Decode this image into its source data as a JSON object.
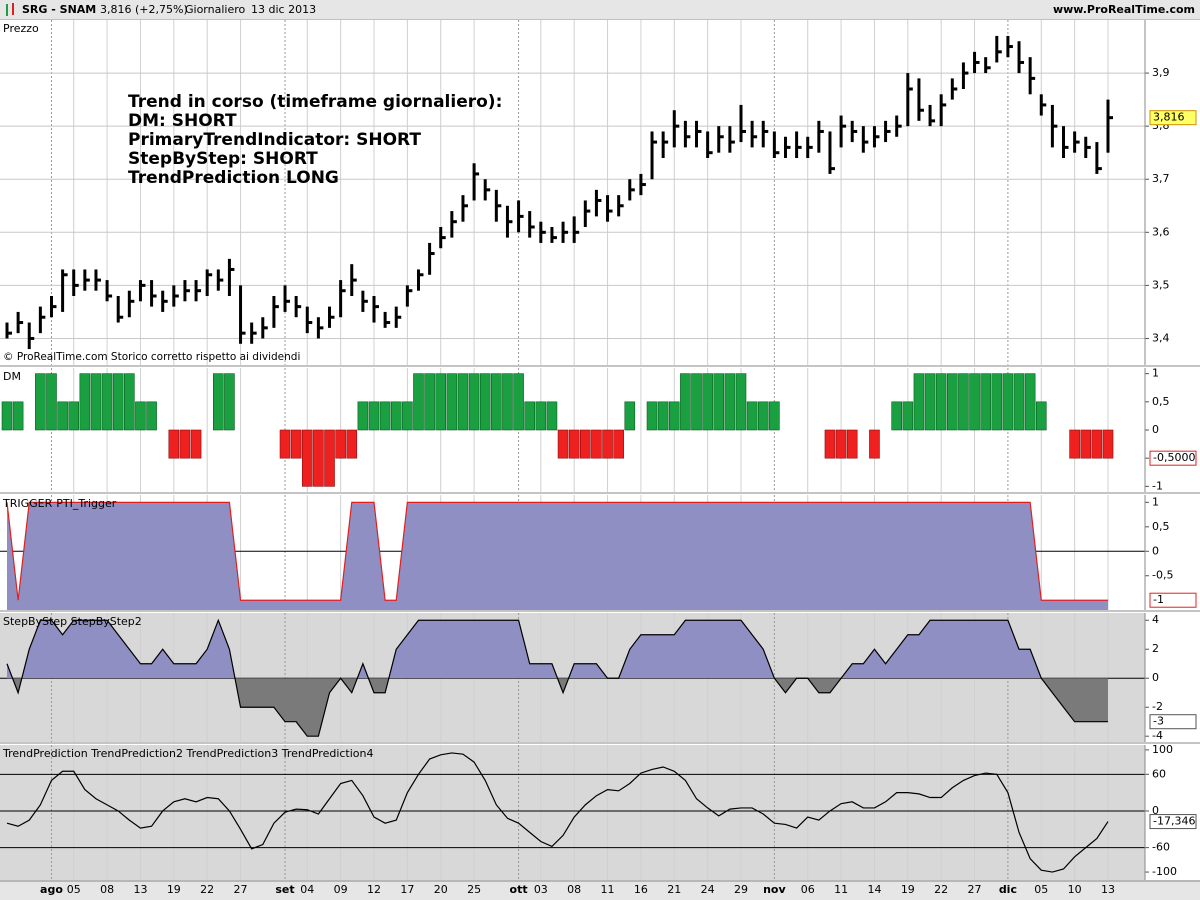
{
  "header": {
    "symbol": "SRG - SNAM",
    "quote": "3,816 (+2,75%)",
    "period": "Giornaliero",
    "date": "13 dic 2013",
    "site": "www.ProRealTime.com"
  },
  "x_categories": [
    null,
    null,
    null,
    null,
    "ago",
    null,
    "05",
    null,
    null,
    "08",
    null,
    null,
    "13",
    null,
    null,
    "19",
    null,
    null,
    "22",
    null,
    null,
    "27",
    null,
    null,
    null,
    "set",
    null,
    "04",
    null,
    null,
    "09",
    null,
    null,
    "12",
    null,
    null,
    "17",
    null,
    null,
    "20",
    null,
    null,
    "25",
    null,
    null,
    null,
    "ott",
    null,
    "03",
    null,
    null,
    "08",
    null,
    null,
    "11",
    null,
    null,
    "16",
    null,
    null,
    "21",
    null,
    null,
    "24",
    null,
    null,
    "29",
    null,
    null,
    "nov",
    null,
    null,
    "06",
    null,
    null,
    "11",
    null,
    null,
    "14",
    null,
    null,
    "19",
    null,
    null,
    "22",
    null,
    null,
    "27",
    null,
    null,
    "dic",
    null,
    null,
    "05",
    null,
    null,
    "10",
    null,
    null,
    "13"
  ],
  "chart_data": [
    {
      "type": "ohlc",
      "title": "Prezzo",
      "title_color": "#000000",
      "background": "#ffffff",
      "annotations": [
        "Trend in corso (timeframe giornaliero):",
        "DM: SHORT",
        "PrimaryTrendIndicator: SHORT",
        "StepByStep: SHORT",
        "TrendPrediction LONG"
      ],
      "footnote": "© ProRealTime.com Storico corretto rispetto ai dividendi",
      "color": "#000000",
      "high": [
        3.43,
        3.45,
        3.43,
        3.46,
        3.48,
        3.53,
        3.53,
        3.53,
        3.53,
        3.51,
        3.48,
        3.49,
        3.51,
        3.51,
        3.49,
        3.5,
        3.51,
        3.51,
        3.53,
        3.53,
        3.55,
        3.5,
        3.43,
        3.44,
        3.48,
        3.5,
        3.48,
        3.46,
        3.44,
        3.46,
        3.51,
        3.54,
        3.49,
        3.48,
        3.45,
        3.46,
        3.5,
        3.53,
        3.58,
        3.61,
        3.64,
        3.67,
        3.73,
        3.7,
        3.68,
        3.65,
        3.66,
        3.64,
        3.62,
        3.61,
        3.62,
        3.63,
        3.66,
        3.68,
        3.67,
        3.67,
        3.7,
        3.71,
        3.79,
        3.79,
        3.83,
        3.81,
        3.81,
        3.79,
        3.8,
        3.8,
        3.84,
        3.81,
        3.81,
        3.79,
        3.78,
        3.79,
        3.78,
        3.81,
        3.79,
        3.82,
        3.81,
        3.8,
        3.8,
        3.81,
        3.82,
        3.9,
        3.89,
        3.84,
        3.86,
        3.89,
        3.92,
        3.94,
        3.93,
        3.97,
        3.97,
        3.96,
        3.93,
        3.86,
        3.84,
        3.8,
        3.79,
        3.78,
        3.77,
        3.85
      ],
      "low": [
        3.4,
        3.41,
        3.38,
        3.41,
        3.44,
        3.45,
        3.48,
        3.49,
        3.49,
        3.47,
        3.43,
        3.44,
        3.47,
        3.46,
        3.45,
        3.46,
        3.47,
        3.47,
        3.48,
        3.49,
        3.48,
        3.39,
        3.39,
        3.4,
        3.42,
        3.45,
        3.44,
        3.41,
        3.4,
        3.42,
        3.44,
        3.48,
        3.45,
        3.43,
        3.42,
        3.42,
        3.46,
        3.49,
        3.52,
        3.57,
        3.59,
        3.62,
        3.66,
        3.66,
        3.62,
        3.59,
        3.6,
        3.59,
        3.58,
        3.58,
        3.58,
        3.58,
        3.61,
        3.63,
        3.62,
        3.63,
        3.66,
        3.67,
        3.7,
        3.74,
        3.76,
        3.76,
        3.76,
        3.74,
        3.75,
        3.75,
        3.77,
        3.76,
        3.76,
        3.74,
        3.74,
        3.74,
        3.74,
        3.75,
        3.71,
        3.76,
        3.77,
        3.75,
        3.76,
        3.77,
        3.78,
        3.8,
        3.81,
        3.8,
        3.8,
        3.85,
        3.87,
        3.9,
        3.9,
        3.92,
        3.93,
        3.9,
        3.86,
        3.82,
        3.76,
        3.74,
        3.75,
        3.74,
        3.71,
        3.75
      ],
      "close": [
        3.41,
        3.43,
        3.4,
        3.44,
        3.46,
        3.52,
        3.5,
        3.51,
        3.51,
        3.48,
        3.44,
        3.47,
        3.5,
        3.48,
        3.47,
        3.48,
        3.49,
        3.49,
        3.52,
        3.51,
        3.53,
        3.41,
        3.41,
        3.42,
        3.46,
        3.47,
        3.46,
        3.43,
        3.42,
        3.44,
        3.49,
        3.51,
        3.47,
        3.46,
        3.43,
        3.44,
        3.49,
        3.52,
        3.56,
        3.59,
        3.62,
        3.65,
        3.71,
        3.68,
        3.65,
        3.62,
        3.63,
        3.61,
        3.6,
        3.59,
        3.6,
        3.6,
        3.64,
        3.66,
        3.64,
        3.65,
        3.68,
        3.69,
        3.77,
        3.77,
        3.8,
        3.78,
        3.79,
        3.75,
        3.78,
        3.77,
        3.79,
        3.78,
        3.79,
        3.75,
        3.76,
        3.76,
        3.76,
        3.79,
        3.72,
        3.8,
        3.79,
        3.77,
        3.78,
        3.79,
        3.8,
        3.87,
        3.83,
        3.81,
        3.84,
        3.87,
        3.9,
        3.92,
        3.91,
        3.94,
        3.95,
        3.92,
        3.89,
        3.84,
        3.8,
        3.76,
        3.77,
        3.76,
        3.72,
        3.816
      ],
      "ylim": [
        3.35,
        4.0
      ],
      "yticks": [
        {
          "value": 3.4,
          "label": "3,4"
        },
        {
          "value": 3.5,
          "label": "3,5"
        },
        {
          "value": 3.6,
          "label": "3,6"
        },
        {
          "value": 3.7,
          "label": "3,7"
        },
        {
          "value": 3.8,
          "label": "3,8"
        },
        {
          "value": 3.9,
          "label": "3,9"
        }
      ],
      "grid": true,
      "last_label": {
        "value": 3.816,
        "label": "3,816",
        "fill": "#ffff66",
        "stroke": "#d09000",
        "color": "#000000"
      }
    },
    {
      "type": "bar",
      "title": "DM",
      "title_color": "#e02020",
      "background": "#ffffff",
      "positive_color": "#1aa040",
      "negative_color": "#ee2020",
      "values": [
        0.5,
        0.5,
        0,
        1,
        1,
        0.5,
        0.5,
        1,
        1,
        1,
        1,
        1,
        0.5,
        0.5,
        0,
        -0.5,
        -0.5,
        -0.5,
        0,
        1,
        1,
        0,
        0,
        0,
        0,
        -0.5,
        -0.5,
        -1,
        -1,
        -1,
        -0.5,
        -0.5,
        0.5,
        0.5,
        0.5,
        0.5,
        0.5,
        1,
        1,
        1,
        1,
        1,
        1,
        1,
        1,
        1,
        1,
        0.5,
        0.5,
        0.5,
        -0.5,
        -0.5,
        -0.5,
        -0.5,
        -0.5,
        -0.5,
        0.5,
        0,
        0.5,
        0.5,
        0.5,
        1,
        1,
        1,
        1,
        1,
        1,
        0.5,
        0.5,
        0.5,
        0,
        0,
        0,
        0,
        -0.5,
        -0.5,
        -0.5,
        0,
        -0.5,
        0,
        0.5,
        0.5,
        1,
        1,
        1,
        1,
        1,
        1,
        1,
        1,
        1,
        1,
        1,
        0.5,
        0,
        0,
        -0.5,
        -0.5,
        -0.5,
        -0.5
      ],
      "ylim": [
        -1.1,
        1.1
      ],
      "yticks": [
        1,
        {
          "value": 0.5,
          "label": "0,5"
        },
        0,
        {
          "value": -0.5,
          "label": "-0,5"
        },
        -1
      ],
      "grid": false,
      "last_label": {
        "value": -0.5,
        "label": "-0,5000",
        "fill": "#ffffff",
        "stroke": "#e02020",
        "color": "#e02020"
      }
    },
    {
      "type": "area",
      "title": "TRIGGER",
      "title_color": "#e02020",
      "subtitle": "PTI_Trigger",
      "background": "#ffffff",
      "fill": "#8f8fc4",
      "line_color": "#e02020",
      "fill_to": "bottom",
      "values": [
        1,
        -1,
        1,
        1,
        1,
        1,
        1,
        1,
        1,
        1,
        1,
        1,
        1,
        1,
        1,
        1,
        1,
        1,
        1,
        1,
        1,
        -1,
        -1,
        -1,
        -1,
        -1,
        -1,
        -1,
        -1,
        -1,
        -1,
        1,
        1,
        1,
        -1,
        -1,
        1,
        1,
        1,
        1,
        1,
        1,
        1,
        1,
        1,
        1,
        1,
        1,
        1,
        1,
        1,
        1,
        1,
        1,
        1,
        1,
        1,
        1,
        1,
        1,
        1,
        1,
        1,
        1,
        1,
        1,
        1,
        1,
        1,
        1,
        1,
        1,
        1,
        1,
        1,
        1,
        1,
        1,
        1,
        1,
        1,
        1,
        1,
        1,
        1,
        1,
        1,
        1,
        1,
        1,
        1,
        1,
        1,
        -1,
        -1,
        -1,
        -1,
        -1,
        -1,
        -1
      ],
      "ylim": [
        -1.2,
        1.15
      ],
      "yticks": [
        1,
        {
          "value": 0.5,
          "label": "0,5"
        },
        0,
        {
          "value": -0.5,
          "label": "-0,5"
        }
      ],
      "hlines": [
        0
      ],
      "last_label": {
        "value": -1,
        "label": "-1",
        "fill": "#ffffff",
        "stroke": "#e02020",
        "color": "#e02020"
      }
    },
    {
      "type": "area",
      "title": "StepByStep StepByStep2",
      "title_color": "#000000",
      "background": "#d8d8d8",
      "fill": "#8f8fc4",
      "fill_negative": "#7a7a7a",
      "line_color": "#000000",
      "fill_to": "zero",
      "values": [
        1,
        -1,
        2,
        4,
        4,
        3,
        4,
        4,
        4,
        4,
        3,
        2,
        1,
        1,
        2,
        1,
        1,
        1,
        2,
        4,
        2,
        -2,
        -2,
        -2,
        -2,
        -3,
        -3,
        -4,
        -4,
        -1,
        0,
        -1,
        1,
        -1,
        -1,
        2,
        3,
        4,
        4,
        4,
        4,
        4,
        4,
        4,
        4,
        4,
        4,
        1,
        1,
        1,
        -1,
        1,
        1,
        1,
        0,
        0,
        2,
        3,
        3,
        3,
        3,
        4,
        4,
        4,
        4,
        4,
        4,
        3,
        2,
        0,
        -1,
        0,
        0,
        -1,
        -1,
        0,
        1,
        1,
        2,
        1,
        2,
        3,
        3,
        4,
        4,
        4,
        4,
        4,
        4,
        4,
        4,
        2,
        2,
        0,
        -1,
        -2,
        -3,
        -3,
        -3,
        -3
      ],
      "ylim": [
        -4.4,
        4.5
      ],
      "yticks": [
        4,
        2,
        0,
        -2,
        -4
      ],
      "hlines": [
        0
      ],
      "last_label": {
        "value": -3,
        "label": "-3",
        "fill": "#ffffff",
        "stroke": "#555555",
        "color": "#000000"
      }
    },
    {
      "type": "line",
      "title": "TrendPrediction TrendPrediction2 TrendPrediction3 TrendPrediction4",
      "title_color": "#000000",
      "background": "#d8d8d8",
      "line_color": "#000000",
      "values": [
        -20,
        -25,
        -15,
        10,
        50,
        65,
        65,
        35,
        20,
        10,
        0,
        -15,
        -28,
        -25,
        0,
        15,
        20,
        15,
        22,
        20,
        0,
        -30,
        -62,
        -55,
        -20,
        -2,
        3,
        2,
        -5,
        20,
        45,
        50,
        25,
        -10,
        -20,
        -15,
        30,
        60,
        85,
        92,
        95,
        93,
        80,
        50,
        10,
        -12,
        -20,
        -35,
        -50,
        -58,
        -40,
        -10,
        10,
        25,
        35,
        33,
        45,
        62,
        68,
        72,
        65,
        50,
        20,
        5,
        -8,
        3,
        5,
        5,
        -5,
        -20,
        -22,
        -28,
        -10,
        -15,
        0,
        12,
        15,
        5,
        5,
        15,
        30,
        30,
        28,
        22,
        22,
        38,
        50,
        58,
        62,
        60,
        30,
        -35,
        -78,
        -97,
        -100,
        -95,
        -75,
        -60,
        -45,
        -17.346
      ],
      "ylim": [
        -113,
        108
      ],
      "yticks": [
        100,
        60,
        0,
        -60,
        -100
      ],
      "hlines": [
        60,
        0,
        -60
      ],
      "last_label": {
        "value": -17.346,
        "label": "-17,346",
        "fill": "#ffffff",
        "stroke": "#555555",
        "color": "#000000"
      }
    }
  ]
}
